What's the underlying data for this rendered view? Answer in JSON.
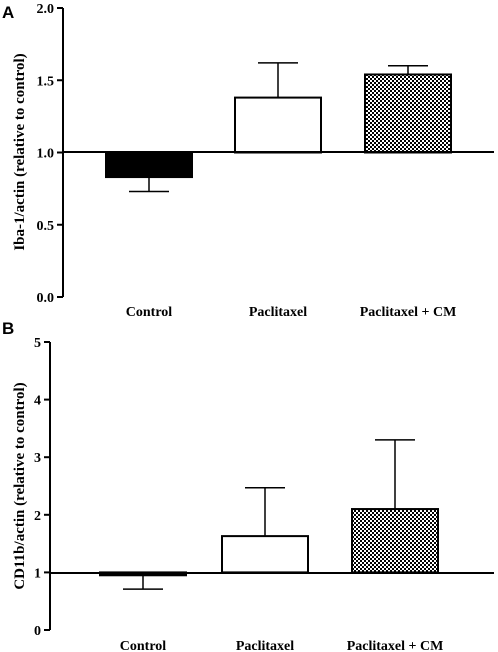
{
  "chart_data": [
    {
      "panel": "A",
      "type": "bar",
      "ylabel": "Iba-1/actin (relative to control)",
      "categories": [
        "Control",
        "Paclitaxel",
        "Paclitaxel + CM"
      ],
      "values": [
        0.83,
        1.38,
        1.54
      ],
      "error_bars": [
        0.1,
        0.24,
        0.06
      ],
      "baseline": 1.0,
      "ylim": [
        0,
        2.0
      ],
      "yticks": [
        0,
        0.5,
        1.0,
        1.5,
        2.0
      ],
      "ytick_labels": [
        "0.0",
        "0.5",
        "1.0",
        "1.5",
        "2.0"
      ],
      "bar_fills": [
        "solid-black",
        "white",
        "checkered"
      ]
    },
    {
      "panel": "B",
      "type": "bar",
      "ylabel": "CD11b/actin (relative to control)",
      "categories": [
        "Control",
        "Paclitaxel",
        "Paclitaxel + CM"
      ],
      "values": [
        0.95,
        1.63,
        2.1
      ],
      "error_bars": [
        0.24,
        0.84,
        1.2
      ],
      "baseline": 1,
      "ylim": [
        0,
        5
      ],
      "yticks": [
        0,
        1,
        2,
        3,
        4,
        5
      ],
      "ytick_labels": [
        "0",
        "1",
        "2",
        "3",
        "4",
        "5"
      ],
      "bar_fills": [
        "solid-black",
        "white",
        "checkered"
      ]
    }
  ]
}
